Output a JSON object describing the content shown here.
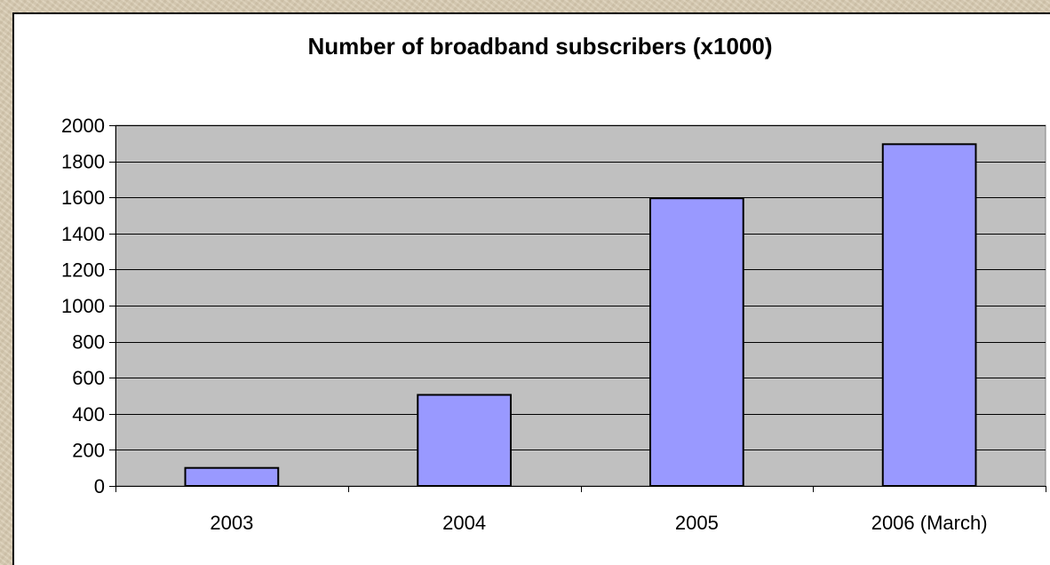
{
  "chart_data": {
    "type": "bar",
    "title": "Number of broadband subscribers (x1000)",
    "xlabel": "",
    "ylabel": "",
    "categories": [
      "2003",
      "2004",
      "2005",
      "2006 (March)"
    ],
    "values": [
      100,
      505,
      1595,
      1895
    ],
    "ylim": [
      0,
      2000
    ],
    "yticks": [
      "0",
      "200",
      "400",
      "600",
      "800",
      "1000",
      "1200",
      "1400",
      "1600",
      "1800",
      "2000"
    ],
    "grid": true,
    "legend": "none",
    "colors": {
      "bar_fill": "#9999ff",
      "bar_stroke": "#000000",
      "plot_background": "#c0c0c0",
      "gridline": "#000000",
      "panel_background": "#ffffff",
      "backdrop": "#d8cbb2"
    }
  }
}
